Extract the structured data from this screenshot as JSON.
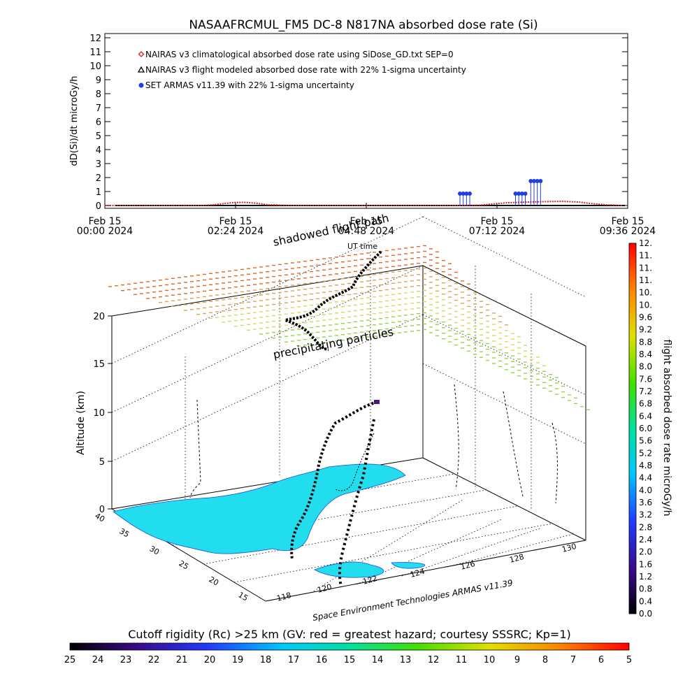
{
  "title": "NASAAFRCMUL_FM5 DC-8   N817NA absorbed dose rate (Si)",
  "colors": {
    "climatological": "#d42020",
    "flight_modeled": "#000000",
    "armas": "#1f3fe0",
    "land": "#22ddee"
  },
  "chart_data": [
    {
      "type": "line",
      "ylabel": "dD(Si)/dt microGy/h",
      "ylim": [
        0,
        12
      ],
      "yticks": [
        "0",
        "1",
        "2",
        "3",
        "4",
        "5",
        "6",
        "7",
        "8",
        "9",
        "10",
        "11",
        "12"
      ],
      "xlim_hours": [
        0,
        9.6
      ],
      "xticks": [
        {
          "line1": "Feb 15",
          "line2": "00:00 2024"
        },
        {
          "line1": "Feb 15",
          "line2": "02:24 2024"
        },
        {
          "line1": "Feb 15",
          "line2": "04:48 2024"
        },
        {
          "line1": "Feb 15",
          "line2": "07:12 2024"
        },
        {
          "line1": "Feb 15",
          "line2": "09:36 2024"
        }
      ],
      "legend": [
        "NAIRAS v3 climatological absorbed dose rate using SiDose_GD.txt SEP=0",
        "NAIRAS v3 flight modeled absorbed dose rate with 22% 1-sigma uncertainty",
        "SET ARMAS v11.39 with 22% 1-sigma uncertainty"
      ],
      "series": [
        {
          "name": "NAIRAS v3 climatological absorbed dose rate using SiDose_GD.txt SEP=0",
          "x": [
            0.0,
            0.5,
            1.0,
            1.5,
            1.8,
            2.0,
            2.2,
            2.4,
            2.6,
            2.8,
            3.0,
            3.4,
            4.0,
            5.0,
            6.0,
            6.5,
            6.9,
            7.1,
            7.4,
            7.8,
            8.1,
            8.4,
            8.7,
            8.9,
            9.2,
            9.5
          ],
          "y": [
            0.0,
            0.0,
            0.0,
            0.0,
            0.0,
            0.05,
            0.15,
            0.22,
            0.22,
            0.15,
            0.05,
            0.0,
            0.0,
            0.0,
            0.0,
            0.0,
            0.02,
            0.1,
            0.2,
            0.25,
            0.28,
            0.3,
            0.25,
            0.15,
            0.05,
            0.0
          ]
        },
        {
          "name": "SET ARMAS v11.39 with 22% 1-sigma uncertainty",
          "x": [
            6.52,
            6.58,
            6.64,
            6.7,
            7.54,
            7.6,
            7.66,
            7.72,
            7.82,
            7.88,
            7.94,
            8.0
          ],
          "y": [
            0.85,
            0.85,
            0.85,
            0.85,
            0.85,
            0.85,
            0.85,
            0.85,
            1.75,
            1.75,
            1.75,
            1.75
          ]
        }
      ]
    },
    {
      "type": "scatter",
      "title": "",
      "zlabel": "Altitude (km)",
      "zticks": [
        "0",
        "5",
        "10",
        "15",
        "20"
      ],
      "lat_ticks": [
        "40",
        "35",
        "30",
        "25",
        "20",
        "15"
      ],
      "lon_ticks": [
        "118",
        "120",
        "122",
        "124",
        "126",
        "128",
        "130"
      ],
      "annotations": [
        "shadowed flight path",
        "UT time",
        "precipitating particles"
      ],
      "credit": "Space Environment Technologies ARMAS v11.39"
    },
    {
      "type": "heatmap",
      "label": "flight absorbed dose rate microGy/h",
      "ticks": [
        "0.0",
        "0.4",
        "0.8",
        "1.2",
        "1.6",
        "2.0",
        "2.4",
        "2.8",
        "3.2",
        "3.6",
        "4.0",
        "4.4",
        "4.8",
        "5.2",
        "5.6",
        "6.0",
        "6.4",
        "6.8",
        "7.2",
        "7.6",
        "8.0",
        "8.4",
        "8.8",
        "9.2",
        "9.6",
        "10.",
        "10.",
        "11.",
        "11.",
        "11.",
        "12."
      ]
    },
    {
      "type": "heatmap",
      "label": "Cutoff rigidity (Rc) >25 km (GV: red = greatest hazard; courtesy SSSRC; Kp=1)",
      "ticks": [
        "25",
        "24",
        "23",
        "22",
        "21",
        "20",
        "19",
        "18",
        "17",
        "16",
        "15",
        "14",
        "13",
        "12",
        "11",
        "10",
        "9",
        "8",
        "7",
        "6",
        "5"
      ]
    }
  ]
}
